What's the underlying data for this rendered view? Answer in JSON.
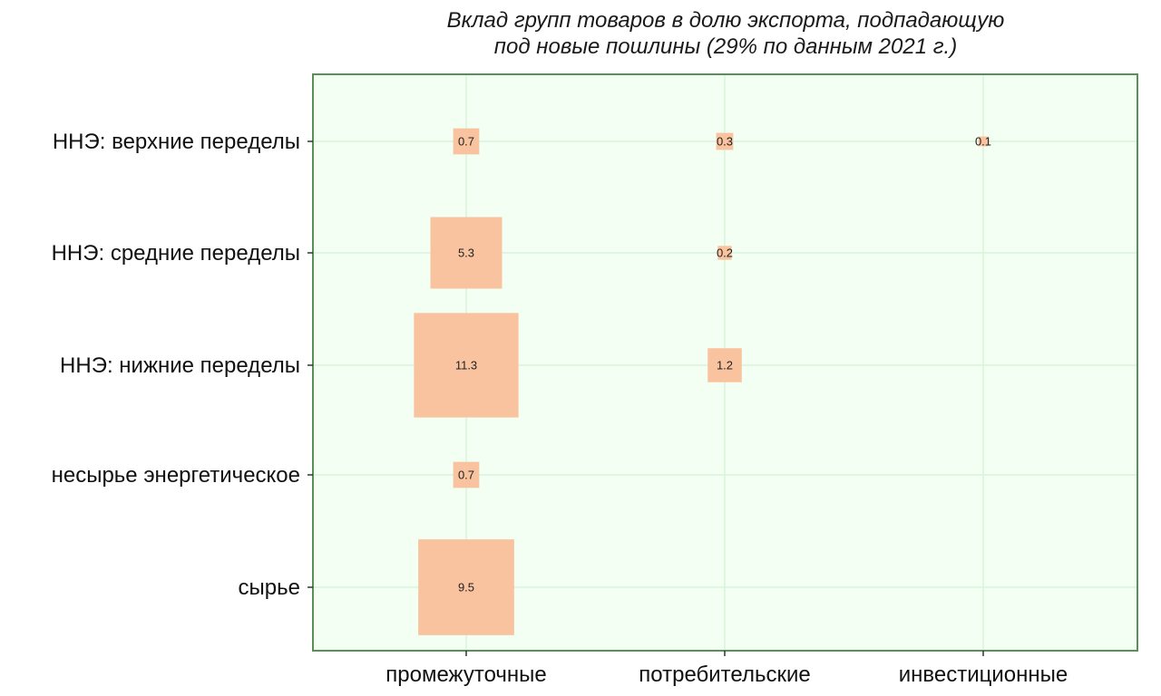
{
  "chart_data": {
    "type": "heatmap",
    "title_lines": [
      "Вклад групп товаров в долю экспорта, подпадающую",
      "под новые пошлины (29% по данным 2021 г.)"
    ],
    "x_categories": [
      "промежуточные",
      "потребительские",
      "инвестиционные"
    ],
    "y_categories": [
      "ННЭ: верхние переделы",
      "ННЭ: средние переделы",
      "ННЭ: нижние переделы",
      "несырье энергетическое",
      "сырье"
    ],
    "cells": [
      {
        "x": "промежуточные",
        "y": "ННЭ: верхние переделы",
        "value": 0.7,
        "label": "0.7"
      },
      {
        "x": "потребительские",
        "y": "ННЭ: верхние переделы",
        "value": 0.3,
        "label": "0.3"
      },
      {
        "x": "инвестиционные",
        "y": "ННЭ: верхние переделы",
        "value": 0.1,
        "label": "0.1"
      },
      {
        "x": "промежуточные",
        "y": "ННЭ: средние переделы",
        "value": 5.3,
        "label": "5.3"
      },
      {
        "x": "потребительские",
        "y": "ННЭ: средние переделы",
        "value": 0.2,
        "label": "0.2"
      },
      {
        "x": "промежуточные",
        "y": "ННЭ: нижние переделы",
        "value": 11.3,
        "label": "11.3"
      },
      {
        "x": "потребительские",
        "y": "ННЭ: нижние переделы",
        "value": 1.2,
        "label": "1.2"
      },
      {
        "x": "промежуточные",
        "y": "несырье энергетическое",
        "value": 0.7,
        "label": "0.7"
      },
      {
        "x": "промежуточные",
        "y": "сырье",
        "value": 9.5,
        "label": "9.5"
      }
    ],
    "grid": true,
    "legend": "none"
  },
  "colors": {
    "panel_background": "#f2fff2",
    "panel_border": "#5a8f5a",
    "gridline": "#dbf3db",
    "tile_fill": "#f9c3a0"
  }
}
